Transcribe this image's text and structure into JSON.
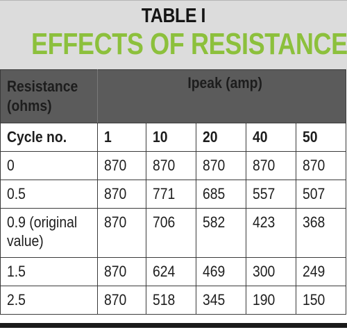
{
  "header": {
    "table_number": "TABLE I",
    "title": "EFFECTS OF RESISTANCE"
  },
  "columns": {
    "resistance_header_line1": "Resistance",
    "resistance_header_line2": "(ohms)",
    "ipeak_header": "Ipeak (amp)",
    "cycle_label": "Cycle no.",
    "cycles": [
      "1",
      "10",
      "20",
      "40",
      "50"
    ]
  },
  "rows": [
    {
      "resistance": "0",
      "values": [
        "870",
        "870",
        "870",
        "870",
        "870"
      ]
    },
    {
      "resistance": "0.5",
      "values": [
        "870",
        "771",
        "685",
        "557",
        "507"
      ]
    },
    {
      "resistance_line1": "0.9 (original",
      "resistance_line2": "value)",
      "values": [
        "870",
        "706",
        "582",
        "423",
        "368"
      ]
    },
    {
      "resistance": "1.5",
      "values": [
        "870",
        "624",
        "469",
        "300",
        "249"
      ]
    },
    {
      "resistance": "2.5",
      "values": [
        "870",
        "518",
        "345",
        "190",
        "150"
      ]
    }
  ],
  "colors": {
    "title_green": "#8cc03c",
    "header_band": "#dcdcdc",
    "column_header_bg": "#5b5b5b"
  }
}
